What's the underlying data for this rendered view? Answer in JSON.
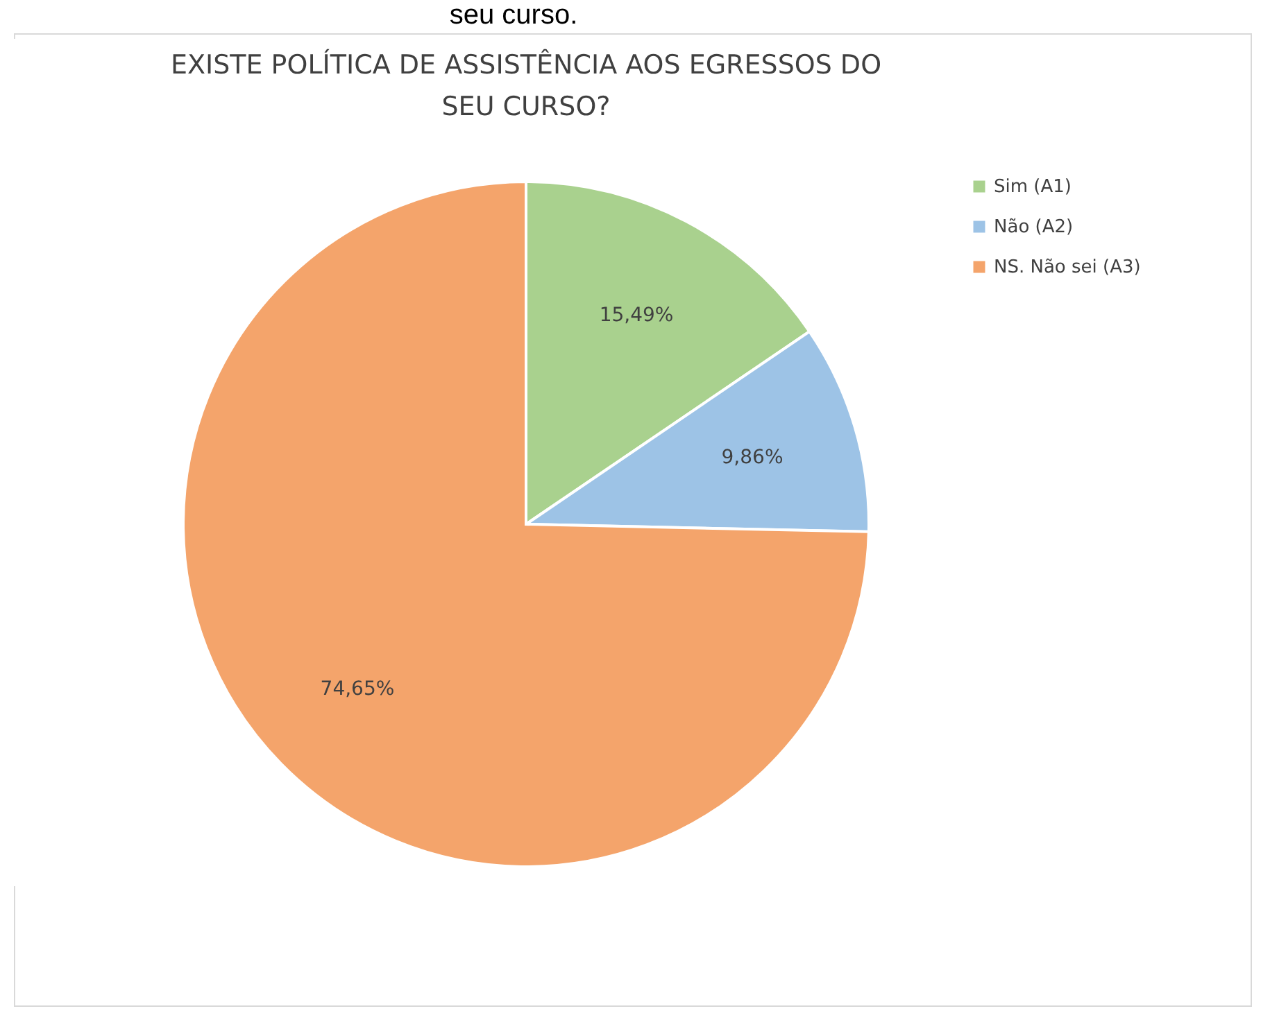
{
  "chart_data": {
    "type": "pie",
    "title": [
      "EXISTE POLÍTICA DE ASSISTÊNCIA AOS EGRESSOS DO",
      "SEU CURSO?"
    ],
    "annotations": [
      "seu curso."
    ],
    "categories": [
      "Sim (A1)",
      "Não (A2)",
      "NS. Não sei (A3)"
    ],
    "values": [
      15.49,
      9.86,
      74.65
    ],
    "colors": [
      "#a9d18e",
      "#9dc3e6",
      "#f4a46b"
    ],
    "value_labels": [
      "15,49%",
      "9,86%",
      "74,65%"
    ],
    "legend": "right"
  }
}
